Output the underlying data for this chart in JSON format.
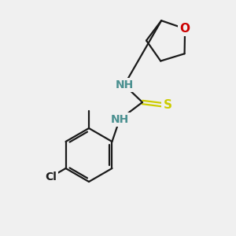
{
  "bg_color": "#f0f0f0",
  "bond_color": "#1a1a1a",
  "N_color": "#2020cc",
  "O_color": "#cc0000",
  "S_color": "#cccc00",
  "H_color": "#4a9090",
  "line_width": 1.6,
  "font_size_atom": 10,
  "font_size_small": 9,
  "figsize": [
    3.0,
    3.0
  ],
  "dpi": 100,
  "xlim": [
    0,
    300
  ],
  "ylim": [
    0,
    300
  ]
}
